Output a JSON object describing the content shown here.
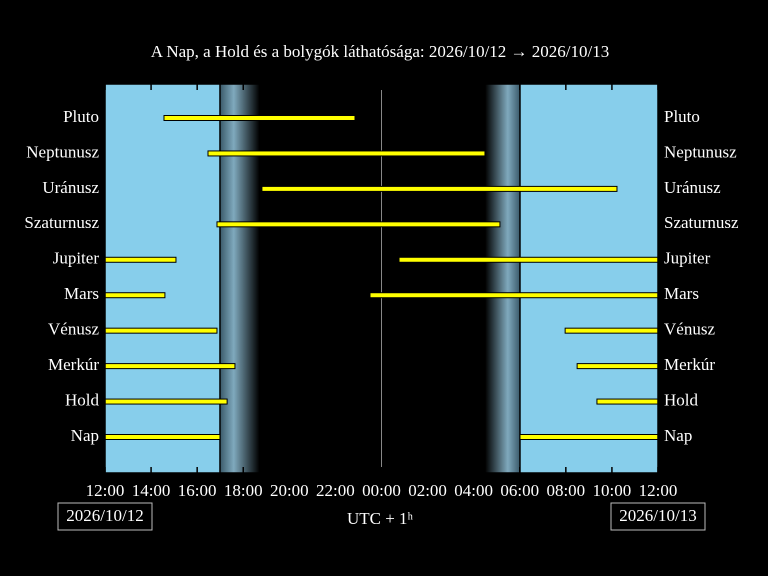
{
  "chart_data": {
    "type": "visibility",
    "title": "A Nap, a Hold és a bolygók láthatósága: 2026/10/12 → 2026/10/13",
    "xlabel": "UTC + 1ʰ",
    "dates": [
      "2026/10/12",
      "2026/10/13"
    ],
    "xlim": [
      0,
      24
    ],
    "xticks": [
      {
        "value": 0,
        "label": "12:00"
      },
      {
        "value": 2,
        "label": "14:00"
      },
      {
        "value": 4,
        "label": "16:00"
      },
      {
        "value": 6,
        "label": "18:00"
      },
      {
        "value": 8,
        "label": "20:00"
      },
      {
        "value": 10,
        "label": "22:00"
      },
      {
        "value": 12,
        "label": "00:00"
      },
      {
        "value": 14,
        "label": "02:00"
      },
      {
        "value": 16,
        "label": "04:00"
      },
      {
        "value": 18,
        "label": "06:00"
      },
      {
        "value": 20,
        "label": "08:00"
      },
      {
        "value": 22,
        "label": "10:00"
      },
      {
        "value": 24,
        "label": "12:00"
      }
    ],
    "vlines": [
      12
    ],
    "day": [
      [
        0,
        4.99
      ],
      [
        18.01,
        24
      ]
    ],
    "night": [
      [
        6.7,
        16.5
      ]
    ],
    "day_color": "#87ceeb",
    "night_color": "#000000",
    "bar_color": "#ffff00",
    "series": [
      {
        "name": "Pluto",
        "values": [
          [
            2.56,
            10.85
          ]
        ]
      },
      {
        "name": "Neptunusz",
        "values": [
          [
            4.47,
            16.49
          ]
        ]
      },
      {
        "name": "Uránusz",
        "values": [
          [
            6.81,
            22.22
          ]
        ]
      },
      {
        "name": "Szaturnusz",
        "values": [
          [
            4.86,
            17.14
          ]
        ]
      },
      {
        "name": "Jupiter",
        "values": [
          [
            0,
            3.08
          ],
          [
            12.76,
            24
          ]
        ]
      },
      {
        "name": "Mars",
        "values": [
          [
            0,
            2.6
          ],
          [
            11.5,
            24
          ]
        ]
      },
      {
        "name": "Vénusz",
        "values": [
          [
            0,
            4.86
          ],
          [
            19.97,
            24
          ]
        ]
      },
      {
        "name": "Merkúr",
        "values": [
          [
            0,
            5.64
          ],
          [
            20.49,
            24
          ]
        ]
      },
      {
        "name": "Hold",
        "values": [
          [
            0,
            5.3
          ],
          [
            21.35,
            24
          ]
        ]
      },
      {
        "name": "Nap",
        "values": [
          [
            0,
            4.99
          ],
          [
            18.01,
            24
          ]
        ]
      }
    ]
  }
}
